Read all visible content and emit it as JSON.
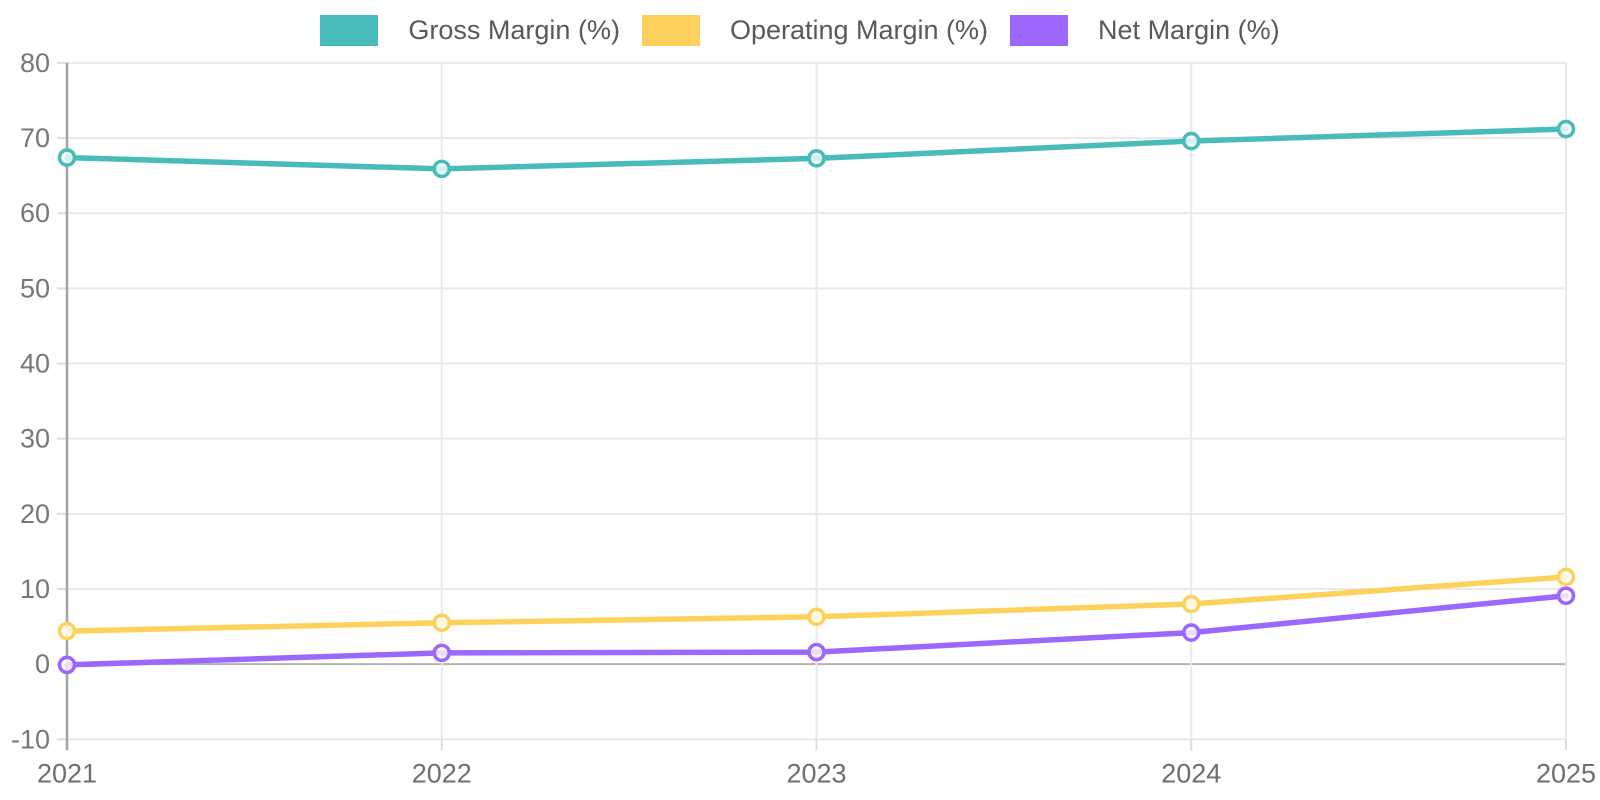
{
  "chart_data": {
    "type": "line",
    "title": "",
    "categories": [
      "2021",
      "2022",
      "2023",
      "2024",
      "2025"
    ],
    "series": [
      {
        "name": "Gross Margin (%)",
        "color": "#47bcba",
        "values": [
          67.4,
          65.9,
          67.3,
          69.6,
          71.2
        ]
      },
      {
        "name": "Operating Margin (%)",
        "color": "#fed15c",
        "values": [
          4.4,
          5.5,
          6.3,
          8.0,
          11.6
        ]
      },
      {
        "name": "Net Margin (%)",
        "color": "#9c67fd",
        "values": [
          -0.1,
          1.5,
          1.6,
          4.2,
          9.1
        ]
      }
    ],
    "y_ticks": [
      80,
      70,
      60,
      50,
      40,
      30,
      20,
      10,
      0,
      -10
    ],
    "ylim": [
      -10,
      80
    ],
    "xlabel": "",
    "ylabel": "",
    "grid": true,
    "legend_position": "top",
    "colors": {
      "grid_line": "#e9e9e9",
      "zero_line": "#b4b4b4",
      "axis_line": "#a3a3a3",
      "tick_mark": "#dcdcdc",
      "y_tick_label": "#777777",
      "x_tick_label": "#6e6e6e",
      "legend_text": "#595959",
      "background": "#ffffff",
      "marker_fill": "#ffffff"
    }
  }
}
